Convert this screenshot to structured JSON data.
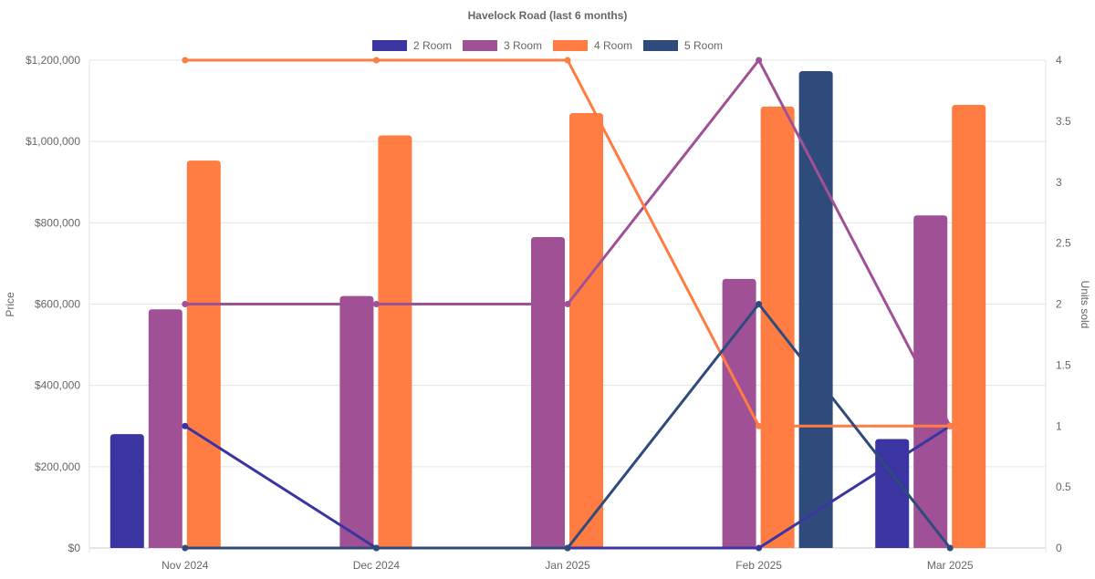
{
  "chart_data": {
    "type": "bar",
    "title": "Havelock Road (last 6 months)",
    "categories": [
      "Nov 2024",
      "Dec 2024",
      "Jan 2025",
      "Feb 2025",
      "Mar 2025"
    ],
    "ylabel": "Price",
    "y2label": "Units sold",
    "ylim": [
      0,
      1200000
    ],
    "y2lim": [
      0,
      4
    ],
    "yticks": [
      "$0",
      "$200,000",
      "$400,000",
      "$600,000",
      "$800,000",
      "$1,000,000",
      "$1,200,000"
    ],
    "y2ticks": [
      "0",
      "0.5",
      "1",
      "1.5",
      "2",
      "2.5",
      "3",
      "3.5",
      "4"
    ],
    "legend_position": "top",
    "grid": true,
    "series": [
      {
        "name": "2 Room",
        "color": "#3a35a1",
        "price": [
          280000,
          null,
          null,
          null,
          268000
        ],
        "units": [
          1,
          0,
          0,
          0,
          1
        ]
      },
      {
        "name": "3 Room",
        "color": "#a05195",
        "price": [
          587000,
          620000,
          765000,
          662000,
          818000
        ],
        "units": [
          2,
          2,
          2,
          4,
          1
        ]
      },
      {
        "name": "4 Room",
        "color": "#ff7c43",
        "price": [
          953000,
          1015000,
          1070000,
          1086000,
          1090000
        ],
        "units": [
          4,
          4,
          4,
          1,
          1
        ]
      },
      {
        "name": "5 Room",
        "color": "#2f4b7c",
        "price": [
          null,
          null,
          null,
          1173000,
          null
        ],
        "units": [
          0,
          0,
          0,
          2,
          0
        ]
      }
    ]
  }
}
